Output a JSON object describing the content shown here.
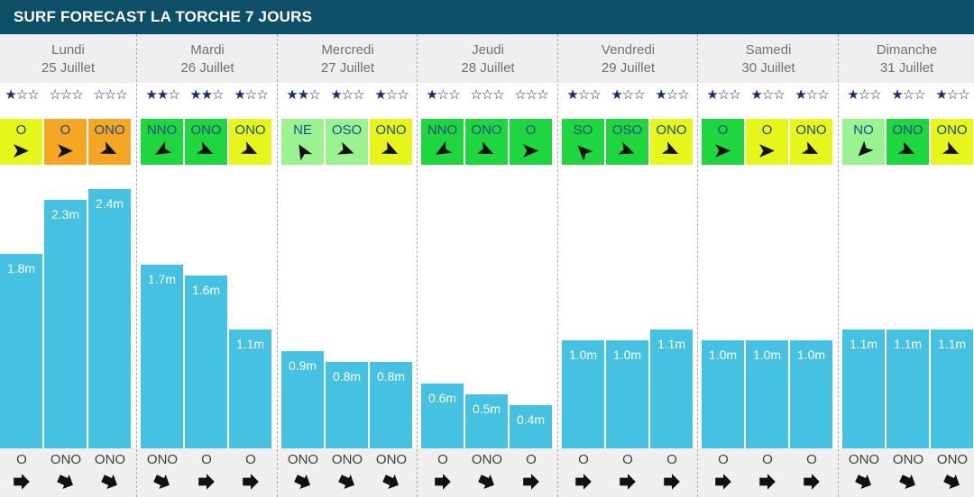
{
  "title": "SURF FORECAST LA TORCHE 7 JOURS",
  "colors": {
    "header": "#0d4f66",
    "bar": "#45c2e2",
    "wind_onshore_strong": "#f5a623",
    "wind_cross": "#e6f51a",
    "wind_offshore": "#1ed73e",
    "wind_light": "#9bf290"
  },
  "chart_data": {
    "type": "bar",
    "unit": "m",
    "ylim": [
      0,
      2.6
    ],
    "days": [
      {
        "name": "Lundi",
        "date": "25 Juillet",
        "slots": [
          {
            "stars": "★☆☆",
            "wind": "O",
            "wind_color": "#e6f51a",
            "wind_rot": 0,
            "height": 1.8,
            "label": "1.8m",
            "swell": "O",
            "swell_rot": 0
          },
          {
            "stars": "☆☆☆",
            "wind": "O",
            "wind_color": "#f5a623",
            "wind_rot": 0,
            "height": 2.3,
            "label": "2.3m",
            "swell": "ONO",
            "swell_rot": 25
          },
          {
            "stars": "☆☆☆",
            "wind": "ONO",
            "wind_color": "#f5a623",
            "wind_rot": 25,
            "height": 2.4,
            "label": "2.4m",
            "swell": "ONO",
            "swell_rot": 25
          }
        ]
      },
      {
        "name": "Mardi",
        "date": "26 Juillet",
        "slots": [
          {
            "stars": "★★☆",
            "wind": "NNO",
            "wind_color": "#1ed73e",
            "wind_rot": 150,
            "height": 1.7,
            "label": "1.7m",
            "swell": "ONO",
            "swell_rot": 25
          },
          {
            "stars": "★★☆",
            "wind": "ONO",
            "wind_color": "#1ed73e",
            "wind_rot": 25,
            "height": 1.6,
            "label": "1.6m",
            "swell": "O",
            "swell_rot": 0
          },
          {
            "stars": "★☆☆",
            "wind": "ONO",
            "wind_color": "#e6f51a",
            "wind_rot": 25,
            "height": 1.1,
            "label": "1.1m",
            "swell": "O",
            "swell_rot": 0
          }
        ]
      },
      {
        "name": "Mercredi",
        "date": "27 Juillet",
        "slots": [
          {
            "stars": "★★☆",
            "wind": "NE",
            "wind_color": "#9bf290",
            "wind_rot": -120,
            "height": 0.9,
            "label": "0.9m",
            "swell": "ONO",
            "swell_rot": 25
          },
          {
            "stars": "★☆☆",
            "wind": "OSO",
            "wind_color": "#9bf290",
            "wind_rot": 20,
            "height": 0.8,
            "label": "0.8m",
            "swell": "ONO",
            "swell_rot": 25
          },
          {
            "stars": "★☆☆",
            "wind": "ONO",
            "wind_color": "#e6f51a",
            "wind_rot": 25,
            "height": 0.8,
            "label": "0.8m",
            "swell": "ONO",
            "swell_rot": 25
          }
        ]
      },
      {
        "name": "Jeudi",
        "date": "28 Juillet",
        "slots": [
          {
            "stars": "★☆☆",
            "wind": "NNO",
            "wind_color": "#1ed73e",
            "wind_rot": 150,
            "height": 0.6,
            "label": "0.6m",
            "swell": "O",
            "swell_rot": 0
          },
          {
            "stars": "☆☆☆",
            "wind": "ONO",
            "wind_color": "#1ed73e",
            "wind_rot": 25,
            "height": 0.5,
            "label": "0.5m",
            "swell": "ONO",
            "swell_rot": 25
          },
          {
            "stars": "☆☆☆",
            "wind": "O",
            "wind_color": "#1ed73e",
            "wind_rot": 0,
            "height": 0.4,
            "label": "0.4m",
            "swell": "O",
            "swell_rot": 0
          }
        ]
      },
      {
        "name": "Vendredi",
        "date": "29 Juillet",
        "slots": [
          {
            "stars": "★☆☆",
            "wind": "SO",
            "wind_color": "#1ed73e",
            "wind_rot": -135,
            "height": 1.0,
            "label": "1.0m",
            "swell": "O",
            "swell_rot": 0
          },
          {
            "stars": "★☆☆",
            "wind": "OSO",
            "wind_color": "#1ed73e",
            "wind_rot": 20,
            "height": 1.0,
            "label": "1.0m",
            "swell": "O",
            "swell_rot": 0
          },
          {
            "stars": "★☆☆",
            "wind": "ONO",
            "wind_color": "#e6f51a",
            "wind_rot": 25,
            "height": 1.1,
            "label": "1.1m",
            "swell": "O",
            "swell_rot": 0
          }
        ]
      },
      {
        "name": "Samedi",
        "date": "30 Juillet",
        "slots": [
          {
            "stars": "★☆☆",
            "wind": "O",
            "wind_color": "#1ed73e",
            "wind_rot": 0,
            "height": 1.0,
            "label": "1.0m",
            "swell": "O",
            "swell_rot": 0
          },
          {
            "stars": "★☆☆",
            "wind": "O",
            "wind_color": "#e6f51a",
            "wind_rot": 0,
            "height": 1.0,
            "label": "1.0m",
            "swell": "O",
            "swell_rot": 0
          },
          {
            "stars": "★☆☆",
            "wind": "ONO",
            "wind_color": "#e6f51a",
            "wind_rot": 25,
            "height": 1.0,
            "label": "1.0m",
            "swell": "O",
            "swell_rot": 0
          }
        ]
      },
      {
        "name": "Dimanche",
        "date": "31 Juillet",
        "slots": [
          {
            "stars": "★☆☆",
            "wind": "NO",
            "wind_color": "#9bf290",
            "wind_rot": 135,
            "height": 1.1,
            "label": "1.1m",
            "swell": "ONO",
            "swell_rot": 25
          },
          {
            "stars": "★☆☆",
            "wind": "ONO",
            "wind_color": "#1ed73e",
            "wind_rot": 25,
            "height": 1.1,
            "label": "1.1m",
            "swell": "ONO",
            "swell_rot": 25
          },
          {
            "stars": "★☆☆",
            "wind": "ONO",
            "wind_color": "#e6f51a",
            "wind_rot": 25,
            "height": 1.1,
            "label": "1.1m",
            "swell": "ONO",
            "swell_rot": 25
          }
        ]
      }
    ]
  }
}
